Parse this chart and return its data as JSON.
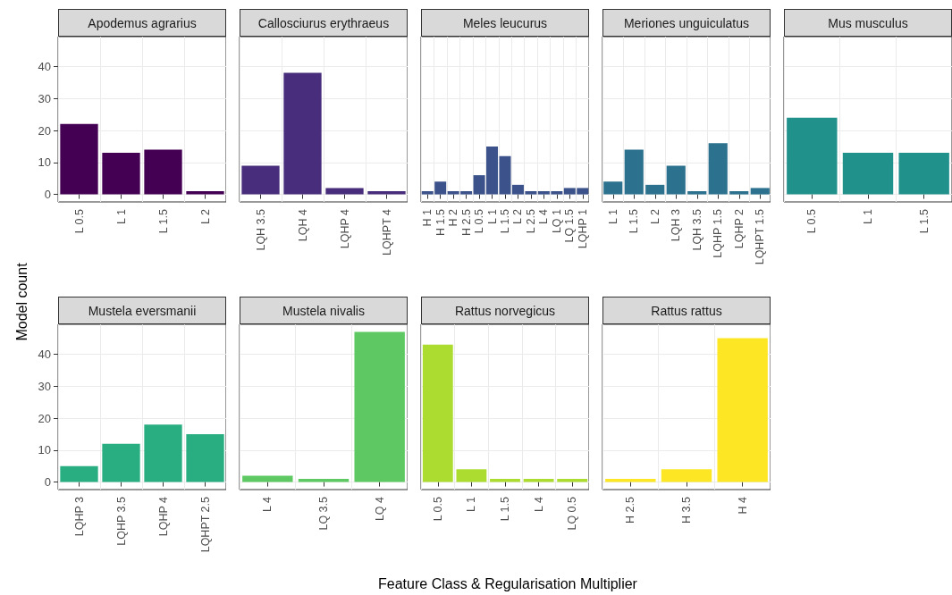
{
  "chart_data": [
    {
      "type": "bar",
      "title": "Apodemus agrarius",
      "ylabel": "Model count",
      "categories": [
        "L 0.5",
        "L 1",
        "L 1.5",
        "L 2"
      ],
      "values": [
        22,
        13,
        14,
        1
      ],
      "color": "#440154",
      "ylim": [
        -2.35,
        49.35
      ],
      "yticks": [
        0,
        10,
        20,
        30,
        40
      ],
      "grid": true
    },
    {
      "type": "bar",
      "title": "Callosciurus erythraeus",
      "categories": [
        "LQH 3.5",
        "LQH 4",
        "LQHP 4",
        "LQHPT 4"
      ],
      "values": [
        9,
        38,
        2,
        1
      ],
      "color": "#472d7b",
      "ylim": [
        -2.35,
        49.35
      ],
      "yticks": [
        0,
        10,
        20,
        30,
        40
      ],
      "grid": true,
      "tick_labels": "x"
    },
    {
      "type": "bar",
      "title": "Meles leucurus",
      "categories": [
        "H 1",
        "H 1.5",
        "H 2",
        "H 2.5",
        "L 0.5",
        "L 1",
        "L 1.5",
        "L 2",
        "L 2.5",
        "L 4",
        "LQ 1",
        "LQ 1.5",
        "LQHP 1"
      ],
      "values": [
        1,
        4,
        1,
        1,
        6,
        15,
        12,
        3,
        1,
        1,
        1,
        2,
        2
      ],
      "color": "#3b528b",
      "ylim": [
        -2.35,
        49.35
      ],
      "yticks": [
        0,
        10,
        20,
        30,
        40
      ],
      "grid": true,
      "tick_labels": "x"
    },
    {
      "type": "bar",
      "title": "Meriones unguiculatus",
      "categories": [
        "L 1",
        "L 1.5",
        "L 2",
        "LQH 3",
        "LQH 3.5",
        "LQHP 1.5",
        "LQHP 2",
        "LQHPT 1.5"
      ],
      "values": [
        4,
        14,
        3,
        9,
        1,
        16,
        1,
        2
      ],
      "color": "#2c728e",
      "ylim": [
        -2.35,
        49.35
      ],
      "yticks": [
        0,
        10,
        20,
        30,
        40
      ],
      "grid": true,
      "tick_labels": "x"
    },
    {
      "type": "bar",
      "title": "Mus musculus",
      "categories": [
        "L 0.5",
        "L 1",
        "L 1.5"
      ],
      "values": [
        24,
        13,
        13
      ],
      "color": "#21918c",
      "ylim": [
        -2.35,
        49.35
      ],
      "yticks": [
        0,
        10,
        20,
        30,
        40
      ],
      "grid": true,
      "tick_labels": "x"
    },
    {
      "type": "bar",
      "title": "Mustela eversmanii",
      "categories": [
        "LQHP 3",
        "LQHP 3.5",
        "LQHP 4",
        "LQHPT 2.5"
      ],
      "values": [
        5,
        12,
        18,
        15
      ],
      "color": "#28ae80",
      "ylim": [
        -2.35,
        49.35
      ],
      "yticks": [
        0,
        10,
        20,
        30,
        40
      ],
      "grid": true
    },
    {
      "type": "bar",
      "title": "Mustela nivalis",
      "categories": [
        "L 4",
        "LQ 3.5",
        "LQ 4"
      ],
      "values": [
        2,
        1,
        47
      ],
      "color": "#5ec962",
      "ylim": [
        -2.35,
        49.35
      ],
      "yticks": [
        0,
        10,
        20,
        30,
        40
      ],
      "grid": true,
      "tick_labels": "x"
    },
    {
      "type": "bar",
      "title": "Rattus norvegicus",
      "xlabel": "Feature Class & Regularisation Multiplier",
      "categories": [
        "L 0.5",
        "L 1",
        "L 1.5",
        "L 4",
        "LQ 0.5"
      ],
      "values": [
        43,
        4,
        1,
        1,
        1
      ],
      "color": "#addc30",
      "ylim": [
        -2.35,
        49.35
      ],
      "yticks": [
        0,
        10,
        20,
        30,
        40
      ],
      "grid": true,
      "tick_labels": "x"
    },
    {
      "type": "bar",
      "title": "Rattus rattus",
      "categories": [
        "H 2.5",
        "H 3.5",
        "H 4"
      ],
      "values": [
        1,
        4,
        45
      ],
      "color": "#fde725",
      "ylim": [
        -2.35,
        49.35
      ],
      "yticks": [
        0,
        10,
        20,
        30,
        40
      ],
      "grid": true,
      "tick_labels": "x"
    }
  ]
}
